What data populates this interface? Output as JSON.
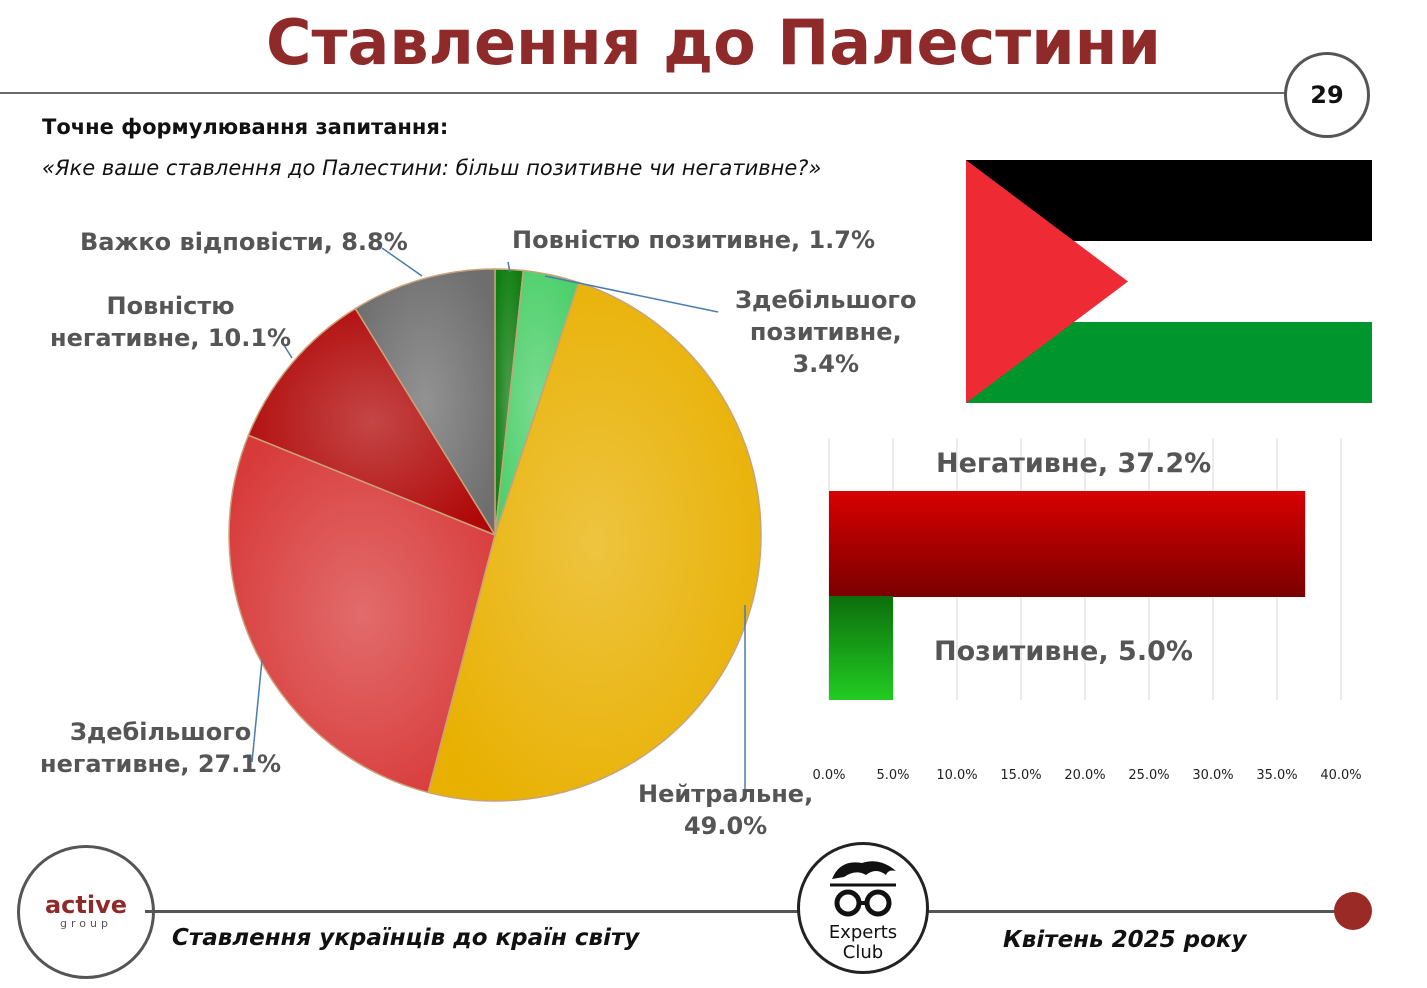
{
  "header": {
    "title": "Ставлення до Палестини",
    "page_number": "29"
  },
  "question": {
    "label": "Точне формулювання запитання:",
    "text": "«Яке ваше ставлення до Палестини: більш позитивне чи негативне?»"
  },
  "chart_data": [
    {
      "type": "pie",
      "categories": [
        "Повністю позитивне",
        "Здебільшого позитивне",
        "Нейтральне",
        "Здебільшого негативне",
        "Повністю негативне",
        "Важко відповісти"
      ],
      "values": [
        1.7,
        3.4,
        49.0,
        27.1,
        10.1,
        8.8
      ],
      "labels": [
        [
          "Повністю позитивне, 1.7%"
        ],
        [
          "Здебільшого",
          "позитивне,",
          "3.4%"
        ],
        [
          "Нейтральне,",
          "49.0%"
        ],
        [
          "Здебільшого",
          "негативне, 27.1%"
        ],
        [
          "Повністю",
          "негативне, 10.1%"
        ],
        [
          "Важко відповісти, 8.8%"
        ]
      ],
      "colors": [
        "#0f7d0f",
        "#4ccf6a",
        "#e8b000",
        "#d83a3a",
        "#b00808",
        "#6e6e6e"
      ]
    },
    {
      "type": "bar",
      "orientation": "horizontal",
      "categories": [
        "Негативне",
        "Позитивне"
      ],
      "values": [
        37.2,
        5.0
      ],
      "labels": [
        "Негативне, 37.2%",
        "Позитивне, 5.0%"
      ],
      "xticks": [
        "0.0%",
        "5.0%",
        "10.0%",
        "15.0%",
        "20.0%",
        "25.0%",
        "30.0%",
        "35.0%",
        "40.0%"
      ],
      "xlim": [
        0,
        40
      ],
      "grid": true,
      "colors": [
        "#c00000",
        "#1aa51a"
      ]
    }
  ],
  "footer": {
    "left": "Ставлення українців до країн світу",
    "right": "Квітень 2025 року"
  },
  "logos": {
    "active_1": "active",
    "active_2": "group",
    "experts_1": "Experts",
    "experts_2": "Club"
  },
  "flag": {
    "black": "#000000",
    "white": "#ffffff",
    "green": "#00962e",
    "red": "#ee2a35"
  }
}
